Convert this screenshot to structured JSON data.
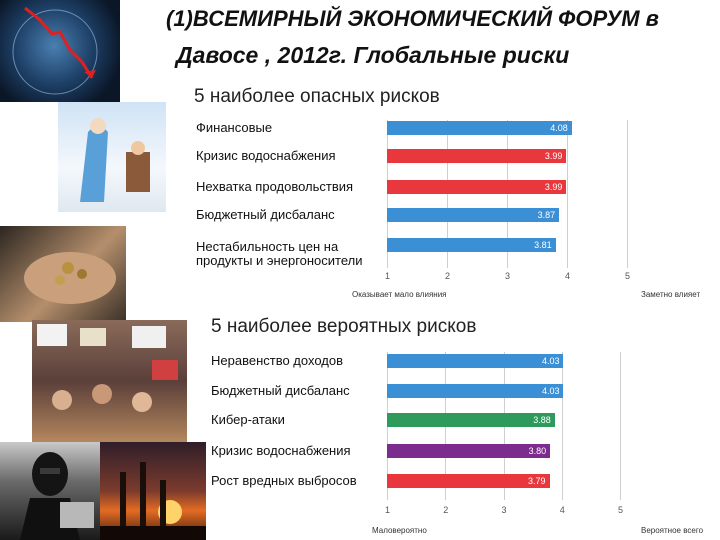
{
  "header": {
    "line1": "(1)ВСЕМИРНЫЙ ЭКОНОМИЧЕСКИЙ ФОРУМ в",
    "line2": "Давосе , 2012г. Глобальные риски"
  },
  "chart_data": [
    {
      "type": "bar",
      "orientation": "horizontal",
      "title": "5 наиболее опасных рисков",
      "categories": [
        "Финансовые",
        "Кризис водоснабжения",
        "Нехватка продовольствия",
        "Бюджетный дисбаланс",
        "Нестабильность цен на продукты и энергоносители"
      ],
      "values": [
        4.08,
        3.99,
        3.99,
        3.87,
        3.81
      ],
      "value_labels": [
        "4.08",
        "3.99",
        "3.99",
        "3.87",
        "3.81"
      ],
      "colors": [
        "#3b8fd4",
        "#e8383d",
        "#e8383d",
        "#3b8fd4",
        "#3b8fd4"
      ],
      "xlim": [
        1,
        5
      ],
      "ticks": [
        "1",
        "2",
        "3",
        "4",
        "5"
      ],
      "footer_left": "Оказывает мало влияния",
      "footer_right": "Заметно влияет"
    },
    {
      "type": "bar",
      "orientation": "horizontal",
      "title": "5 наиболее вероятных рисков",
      "categories": [
        "Неравенство доходов",
        "Бюджетный дисбаланс",
        "Кибер-атаки",
        "Кризис водоснабжения",
        "Рост вредных выбросов"
      ],
      "values": [
        4.03,
        4.03,
        3.88,
        3.8,
        3.79
      ],
      "value_labels": [
        "4.03",
        "4.03",
        "3.88",
        "3.80",
        "3.79"
      ],
      "colors": [
        "#3b8fd4",
        "#3b8fd4",
        "#2e9b5c",
        "#7b2c8c",
        "#e8383d"
      ],
      "xlim": [
        1,
        5
      ],
      "ticks": [
        "1",
        "2",
        "3",
        "4",
        "5"
      ],
      "footer_left": "Маловероятно",
      "footer_right": "Вероятное всего"
    }
  ]
}
